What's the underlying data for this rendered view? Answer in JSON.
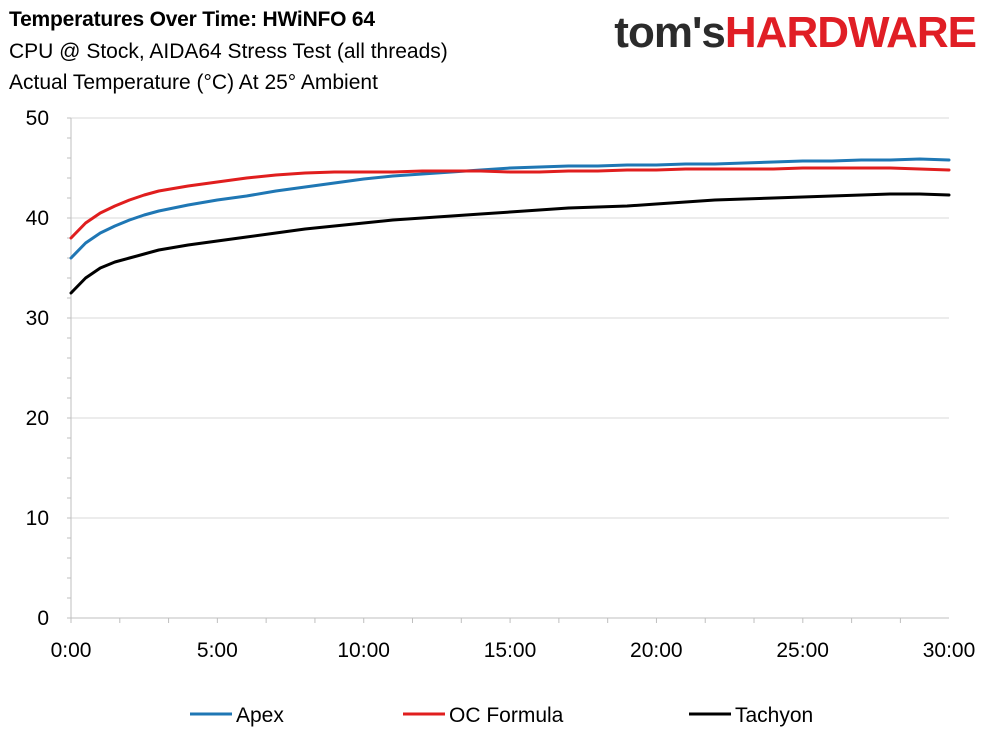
{
  "logo": {
    "part1": "tom's",
    "part2": "HARDWARE"
  },
  "colors": {
    "apex": "#1f77b4",
    "oc_formula": "#e01e1e",
    "tachyon": "#000000",
    "grid": "#d9d9d9",
    "logo_red": "#e01e25"
  },
  "chart_data": {
    "type": "line",
    "title": "Temperatures Over Time: HWiNFO 64",
    "subtitle": "CPU @ Stock, AIDA64 Stress Test (all threads)",
    "subtitle2": "Actual Temperature (°C) At 25° Ambient",
    "xlabel": "",
    "ylabel": "",
    "x_unit": "minutes",
    "xlim": [
      0,
      30
    ],
    "ylim": [
      0,
      50
    ],
    "x_ticks": [
      "0:00",
      "5:00",
      "10:00",
      "15:00",
      "20:00",
      "25:00",
      "30:00"
    ],
    "y_ticks": [
      "0",
      "10",
      "20",
      "30",
      "40",
      "50"
    ],
    "grid": "horizontal",
    "legend_position": "bottom",
    "x": [
      0,
      0.5,
      1,
      1.5,
      2,
      2.5,
      3,
      4,
      5,
      6,
      7,
      8,
      9,
      10,
      11,
      12,
      13,
      14,
      15,
      16,
      17,
      18,
      19,
      20,
      21,
      22,
      23,
      24,
      25,
      26,
      27,
      28,
      29,
      30
    ],
    "series": [
      {
        "name": "Apex",
        "color": "#1f77b4",
        "values": [
          36.0,
          37.5,
          38.5,
          39.2,
          39.8,
          40.3,
          40.7,
          41.3,
          41.8,
          42.2,
          42.7,
          43.1,
          43.5,
          43.9,
          44.2,
          44.4,
          44.6,
          44.8,
          45.0,
          45.1,
          45.2,
          45.2,
          45.3,
          45.3,
          45.4,
          45.4,
          45.5,
          45.6,
          45.7,
          45.7,
          45.8,
          45.8,
          45.9,
          45.8
        ]
      },
      {
        "name": "OC Formula",
        "color": "#e01e1e",
        "values": [
          38.0,
          39.5,
          40.5,
          41.2,
          41.8,
          42.3,
          42.7,
          43.2,
          43.6,
          44.0,
          44.3,
          44.5,
          44.6,
          44.6,
          44.6,
          44.7,
          44.7,
          44.7,
          44.6,
          44.6,
          44.7,
          44.7,
          44.8,
          44.8,
          44.9,
          44.9,
          44.9,
          44.9,
          45.0,
          45.0,
          45.0,
          45.0,
          44.9,
          44.8
        ]
      },
      {
        "name": "Tachyon",
        "color": "#000000",
        "values": [
          32.5,
          34.0,
          35.0,
          35.6,
          36.0,
          36.4,
          36.8,
          37.3,
          37.7,
          38.1,
          38.5,
          38.9,
          39.2,
          39.5,
          39.8,
          40.0,
          40.2,
          40.4,
          40.6,
          40.8,
          41.0,
          41.1,
          41.2,
          41.4,
          41.6,
          41.8,
          41.9,
          42.0,
          42.1,
          42.2,
          42.3,
          42.4,
          42.4,
          42.3
        ]
      }
    ]
  }
}
